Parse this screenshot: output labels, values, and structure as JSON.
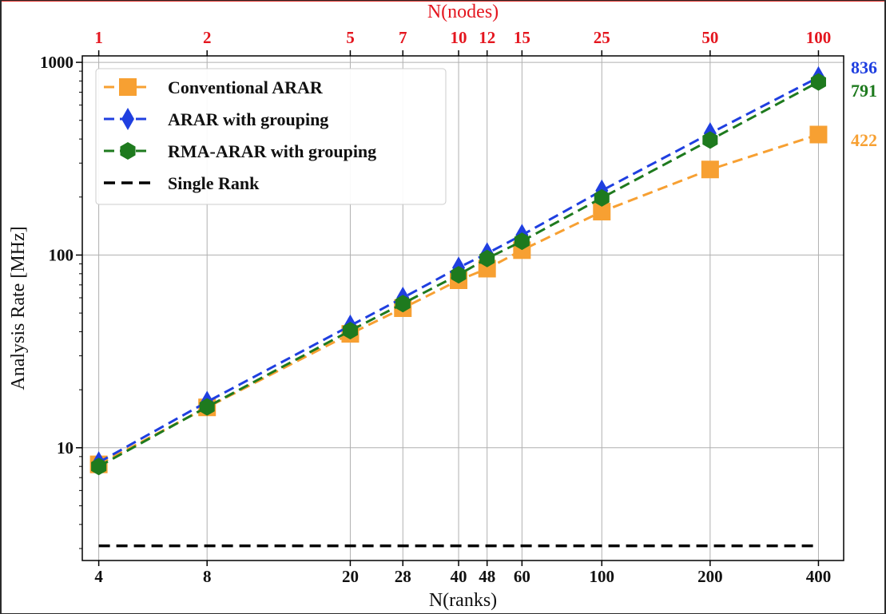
{
  "chart_data": {
    "type": "line",
    "x_scale": "log",
    "y_scale": "log",
    "xlabel": "N(ranks)",
    "ylabel": "Analysis Rate [MHz]",
    "top_xlabel": "N(nodes)",
    "xlim": [
      3.6,
      470
    ],
    "ylim": [
      2.6,
      1080
    ],
    "x_ticks": [
      4,
      8,
      20,
      28,
      40,
      48,
      60,
      100,
      200,
      400
    ],
    "x_tick_labels": [
      "4",
      "8",
      "20",
      "28",
      "40",
      "48",
      "60",
      "100",
      "200",
      "400"
    ],
    "top_ticks": [
      4,
      8,
      20,
      28,
      40,
      48,
      60,
      100,
      200,
      400
    ],
    "top_tick_labels": [
      "1",
      "2",
      "5",
      "7",
      "10",
      "12",
      "15",
      "25",
      "50",
      "100"
    ],
    "y_ticks": [
      10,
      100,
      1000
    ],
    "y_tick_labels": [
      "10",
      "100",
      "1000"
    ],
    "grid": true,
    "legend_position": "top-left",
    "series": [
      {
        "name": "Conventional ARAR",
        "color": "#f7a032",
        "marker": "square",
        "x": [
          4,
          8,
          20,
          28,
          40,
          48,
          60,
          100,
          200,
          400
        ],
        "values": [
          8.2,
          16.2,
          39,
          53,
          74,
          85,
          106,
          168,
          278,
          422
        ]
      },
      {
        "name": "ARAR with grouping",
        "color": "#1f3fe0",
        "marker": "diamond",
        "x": [
          4,
          8,
          20,
          28,
          40,
          48,
          60,
          100,
          200,
          400
        ],
        "values": [
          8.4,
          17.3,
          43,
          60,
          86,
          102,
          127,
          216,
          428,
          836
        ]
      },
      {
        "name": "RMA-ARAR with grouping",
        "color": "#1e7a1e",
        "marker": "hexagon",
        "x": [
          4,
          8,
          20,
          28,
          40,
          48,
          60,
          100,
          200,
          400
        ],
        "values": [
          8.0,
          16.3,
          40.5,
          56,
          79,
          96,
          118,
          198,
          395,
          791
        ]
      },
      {
        "name": "Single Rank",
        "color": "#000000",
        "marker": "none",
        "x": [
          4,
          400
        ],
        "values": [
          3.1,
          3.1
        ]
      }
    ],
    "end_labels": [
      {
        "text": "836",
        "color": "#1f3fe0"
      },
      {
        "text": "791",
        "color": "#1e7a1e"
      },
      {
        "text": "422",
        "color": "#f7a032"
      }
    ]
  }
}
